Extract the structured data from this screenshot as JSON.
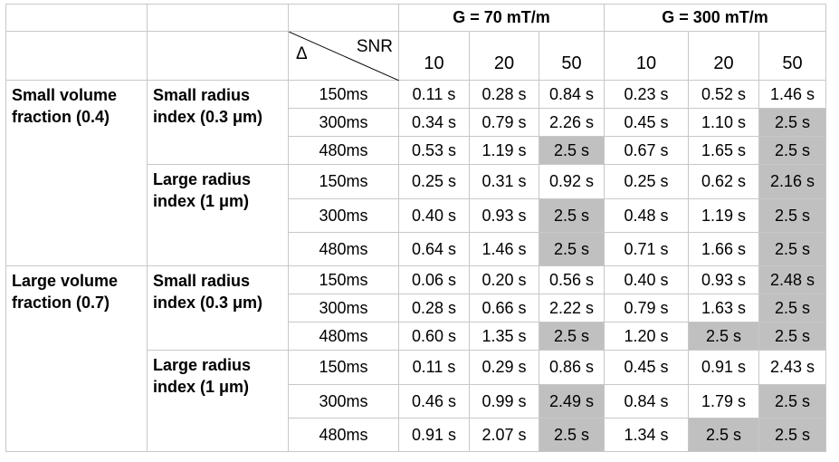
{
  "header": {
    "group1": "G = 70 mT/m",
    "group2": "G = 300 mT/m",
    "delta_symbol": "Δ",
    "snr_label": "SNR",
    "snr_values": [
      "10",
      "20",
      "50",
      "10",
      "20",
      "50"
    ]
  },
  "blocks": [
    {
      "volume_label_line1": "Small volume",
      "volume_label_line2": "fraction (0.4)",
      "radii": [
        {
          "label_line1": "Small radius",
          "label_line2": "index (0.3 μm)",
          "rows": [
            {
              "delta": "150ms",
              "values": [
                "0.11 s",
                "0.28 s",
                "0.84 s",
                "0.23 s",
                "0.52 s",
                "1.46 s"
              ],
              "shaded": [
                false,
                false,
                false,
                false,
                false,
                false
              ]
            },
            {
              "delta": "300ms",
              "values": [
                "0.34 s",
                "0.79 s",
                "2.26 s",
                "0.45 s",
                "1.10 s",
                "2.5 s"
              ],
              "shaded": [
                false,
                false,
                false,
                false,
                false,
                true
              ]
            },
            {
              "delta": "480ms",
              "values": [
                "0.53 s",
                "1.19 s",
                "2.5 s",
                "0.67 s",
                "1.65 s",
                "2.5 s"
              ],
              "shaded": [
                false,
                false,
                true,
                false,
                false,
                true
              ]
            }
          ]
        },
        {
          "label_line1": "Large radius",
          "label_line2": "index (1 μm)",
          "rows": [
            {
              "delta": "150ms",
              "values": [
                "0.25 s",
                "0.31 s",
                "0.92 s",
                "0.25 s",
                "0.62 s",
                "2.16 s"
              ],
              "shaded": [
                false,
                false,
                false,
                false,
                false,
                true
              ]
            },
            {
              "delta": "300ms",
              "values": [
                "0.40 s",
                "0.93 s",
                "2.5 s",
                "0.48 s",
                "1.19 s",
                "2.5 s"
              ],
              "shaded": [
                false,
                false,
                true,
                false,
                false,
                true
              ]
            },
            {
              "delta": "480ms",
              "values": [
                "0.64 s",
                "1.46 s",
                "2.5 s",
                "0.71 s",
                "1.66 s",
                "2.5 s"
              ],
              "shaded": [
                false,
                false,
                true,
                false,
                false,
                true
              ]
            }
          ]
        }
      ]
    },
    {
      "volume_label_line1": "Large volume",
      "volume_label_line2": "fraction (0.7)",
      "radii": [
        {
          "label_line1": "Small radius",
          "label_line2": "index (0.3 μm)",
          "rows": [
            {
              "delta": "150ms",
              "values": [
                "0.06 s",
                "0.20 s",
                "0.56 s",
                "0.40 s",
                "0.93 s",
                "2.48 s"
              ],
              "shaded": [
                false,
                false,
                false,
                false,
                false,
                true
              ]
            },
            {
              "delta": "300ms",
              "values": [
                "0.28 s",
                "0.66 s",
                "2.22 s",
                "0.79 s",
                "1.63 s",
                "2.5 s"
              ],
              "shaded": [
                false,
                false,
                false,
                false,
                false,
                true
              ]
            },
            {
              "delta": "480ms",
              "values": [
                "0.60 s",
                "1.35 s",
                "2.5 s",
                "1.20 s",
                "2.5 s",
                "2.5 s"
              ],
              "shaded": [
                false,
                false,
                true,
                false,
                true,
                true
              ]
            }
          ]
        },
        {
          "label_line1": "Large radius",
          "label_line2": "index (1 μm)",
          "rows": [
            {
              "delta": "150ms",
              "values": [
                "0.11 s",
                "0.29 s",
                "0.86 s",
                "0.45 s",
                "0.91 s",
                "2.43 s"
              ],
              "shaded": [
                false,
                false,
                false,
                false,
                false,
                false
              ]
            },
            {
              "delta": "300ms",
              "values": [
                "0.46 s",
                "0.99 s",
                "2.49 s",
                "0.84 s",
                "1.79 s",
                "2.5 s"
              ],
              "shaded": [
                false,
                false,
                true,
                false,
                false,
                true
              ]
            },
            {
              "delta": "480ms",
              "values": [
                "0.91 s",
                "2.07 s",
                "2.5 s",
                "1.34 s",
                "2.5 s",
                "2.5 s"
              ],
              "shaded": [
                false,
                false,
                true,
                false,
                true,
                true
              ]
            }
          ]
        }
      ]
    }
  ],
  "colors": {
    "shade": "#c0c0c0",
    "grid": "#c8c8c8",
    "rule": "#000000"
  }
}
